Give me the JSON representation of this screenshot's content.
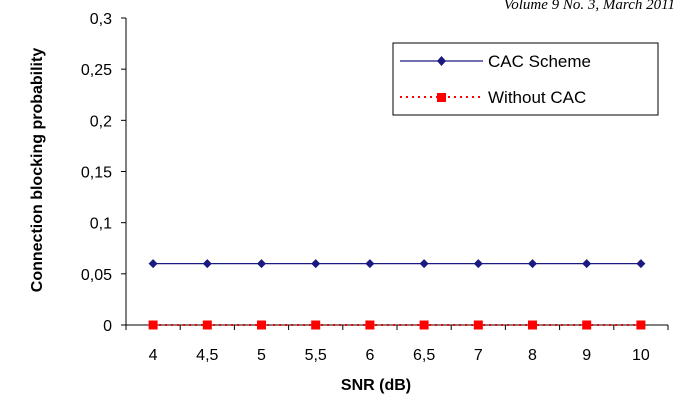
{
  "header": {
    "citation": "Volume 9 No. 3, March 2011"
  },
  "colors": {
    "cac_scheme": "#1a1a80",
    "without_cac": "#ff0000",
    "axis": "#000000"
  },
  "chart_data": {
    "type": "line",
    "title": "",
    "xlabel": "SNR (dB)",
    "ylabel": "Connection blocking probability",
    "categories": [
      "4",
      "4,5",
      "5",
      "5,5",
      "6",
      "6,5",
      "7",
      "8",
      "9",
      "10"
    ],
    "y_ticks": [
      "0",
      "0,05",
      "0,1",
      "0,15",
      "0,2",
      "0,25",
      "0,3"
    ],
    "ylim": [
      0,
      0.3
    ],
    "grid": false,
    "legend_position": "top-right",
    "series": [
      {
        "name": "CAC Scheme",
        "color": "#1a1a80",
        "line_style": "solid",
        "marker": "diamond",
        "values": [
          0.06,
          0.06,
          0.06,
          0.06,
          0.06,
          0.06,
          0.06,
          0.06,
          0.06,
          0.06
        ]
      },
      {
        "name": "Without CAC",
        "color": "#ff0000",
        "line_style": "dotted",
        "marker": "square",
        "values": [
          0,
          0,
          0,
          0,
          0,
          0,
          0,
          0,
          0,
          0
        ]
      }
    ]
  }
}
